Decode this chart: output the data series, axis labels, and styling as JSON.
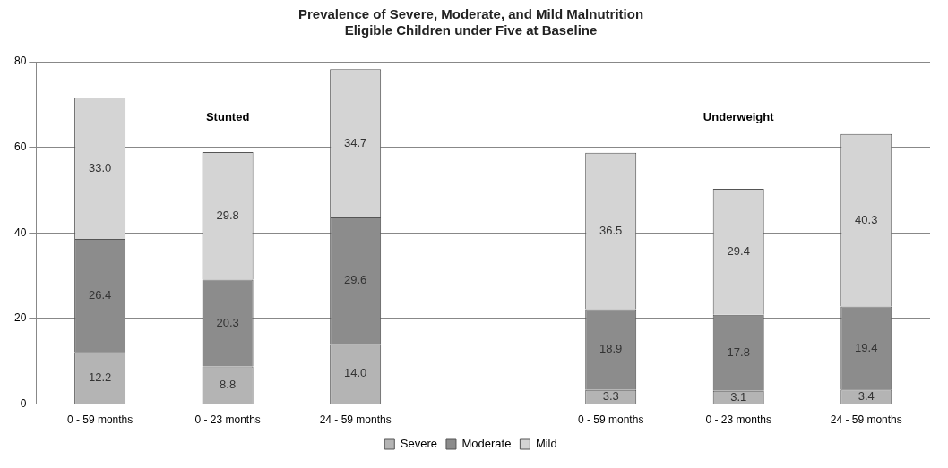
{
  "chart_data": {
    "type": "bar",
    "title": [
      "Prevalence of Severe, Moderate, and Mild Malnutrition",
      "Eligible Children under Five at Baseline"
    ],
    "categories": [
      "0 - 59 months",
      "0 - 23 months",
      "24 - 59 months",
      null,
      "0 - 59 months",
      "0 - 23 months",
      "24 - 59 months"
    ],
    "stacked": true,
    "series": [
      {
        "name": "Severe",
        "color": "#b4b4b4",
        "values": [
          12.2,
          8.8,
          14.0,
          null,
          3.3,
          3.1,
          3.4
        ],
        "value_labels": [
          "12.2",
          "8.8",
          "14.0",
          null,
          "3.3",
          "3.1",
          "3.4"
        ]
      },
      {
        "name": "Moderate",
        "color": "#8c8c8c",
        "values": [
          26.4,
          20.3,
          29.6,
          null,
          18.9,
          17.8,
          19.4
        ],
        "value_labels": [
          "26.4",
          "20.3",
          "29.6",
          null,
          "18.9",
          "17.8",
          "19.4"
        ]
      },
      {
        "name": "Mild",
        "color": "#d4d4d4",
        "values": [
          33.0,
          29.8,
          34.7,
          null,
          36.5,
          29.4,
          40.3
        ],
        "value_labels": [
          "33.0",
          "29.8",
          "34.7",
          null,
          "36.5",
          "29.4",
          "40.3"
        ]
      }
    ],
    "ylim": [
      0,
      80
    ],
    "yticks": [
      0,
      20,
      40,
      60,
      80
    ],
    "grid": "y",
    "legend": "bottom",
    "annotations": [
      "Stunted",
      "Underweight"
    ]
  }
}
